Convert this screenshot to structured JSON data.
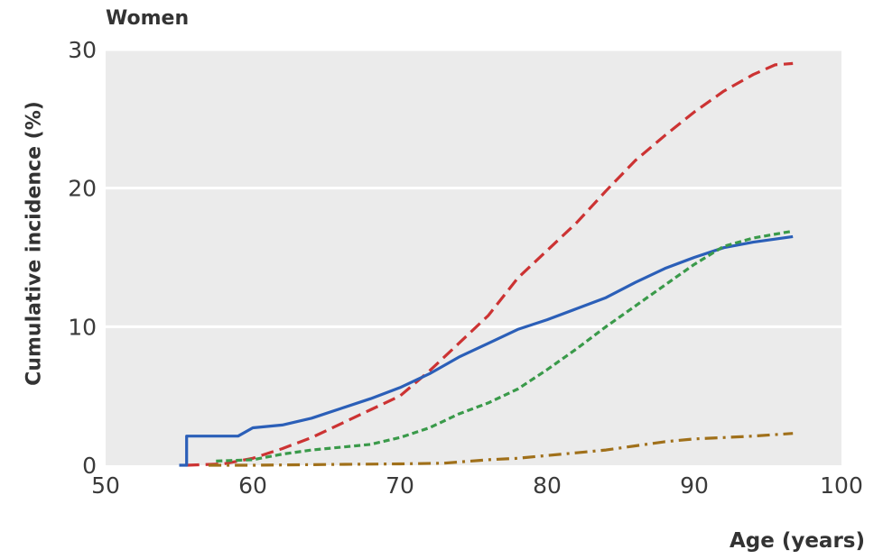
{
  "chart_data": {
    "type": "line",
    "title": "Women",
    "xlabel": "Age (years)",
    "ylabel": "Cumulative incidence (%)",
    "xlim": [
      50,
      100
    ],
    "ylim": [
      0,
      30
    ],
    "x_ticks": [
      "50",
      "60",
      "70",
      "80",
      "90",
      "100"
    ],
    "y_ticks": [
      "0",
      "10",
      "20",
      "30"
    ],
    "grid": "horizontal",
    "background": "#ebebeb",
    "series": [
      {
        "color": "#cc3333",
        "style": "dashed",
        "step": false,
        "points": [
          [
            55.5,
            0
          ],
          [
            58,
            0.1
          ],
          [
            60,
            0.5
          ],
          [
            62,
            1.2
          ],
          [
            64,
            2
          ],
          [
            66,
            3
          ],
          [
            68,
            4
          ],
          [
            70,
            5
          ],
          [
            72,
            6.8
          ],
          [
            74,
            8.8
          ],
          [
            76,
            10.8
          ],
          [
            78,
            13.5
          ],
          [
            80,
            15.5
          ],
          [
            82,
            17.5
          ],
          [
            84,
            19.8
          ],
          [
            86,
            22
          ],
          [
            88,
            23.8
          ],
          [
            90,
            25.5
          ],
          [
            92,
            27
          ],
          [
            94,
            28.2
          ],
          [
            95.5,
            28.9
          ],
          [
            96.7,
            29
          ]
        ]
      },
      {
        "color": "#2b5fb8",
        "style": "solid",
        "step": true,
        "points": [
          [
            55,
            0
          ],
          [
            55.5,
            0
          ],
          [
            55.5,
            2.1
          ],
          [
            59,
            2.1
          ],
          [
            60,
            2.7
          ],
          [
            62,
            2.9
          ],
          [
            64,
            3.4
          ],
          [
            66,
            4.1
          ],
          [
            68,
            4.8
          ],
          [
            70,
            5.6
          ],
          [
            72,
            6.6
          ],
          [
            74,
            7.8
          ],
          [
            76,
            8.8
          ],
          [
            78,
            9.8
          ],
          [
            80,
            10.5
          ],
          [
            82,
            11.3
          ],
          [
            84,
            12.1
          ],
          [
            86,
            13.2
          ],
          [
            88,
            14.2
          ],
          [
            90,
            15
          ],
          [
            92,
            15.7
          ],
          [
            94,
            16.1
          ],
          [
            96.7,
            16.5
          ]
        ]
      },
      {
        "color": "#3a9a4a",
        "style": "dotted",
        "step": false,
        "points": [
          [
            57.5,
            0.3
          ],
          [
            60,
            0.4
          ],
          [
            62,
            0.8
          ],
          [
            64,
            1.1
          ],
          [
            66,
            1.3
          ],
          [
            68,
            1.5
          ],
          [
            70,
            2
          ],
          [
            72,
            2.7
          ],
          [
            74,
            3.7
          ],
          [
            76,
            4.5
          ],
          [
            78,
            5.5
          ],
          [
            80,
            6.9
          ],
          [
            82,
            8.4
          ],
          [
            84,
            10
          ],
          [
            86,
            11.5
          ],
          [
            88,
            13
          ],
          [
            90,
            14.5
          ],
          [
            92,
            15.8
          ],
          [
            94,
            16.4
          ],
          [
            96.7,
            16.9
          ]
        ]
      },
      {
        "color": "#a0701a",
        "style": "dashdot",
        "step": false,
        "points": [
          [
            57,
            0
          ],
          [
            60,
            0
          ],
          [
            65,
            0.05
          ],
          [
            70,
            0.1
          ],
          [
            73,
            0.15
          ],
          [
            76,
            0.4
          ],
          [
            78,
            0.5
          ],
          [
            80,
            0.7
          ],
          [
            82,
            0.9
          ],
          [
            84,
            1.1
          ],
          [
            86,
            1.4
          ],
          [
            88,
            1.7
          ],
          [
            90,
            1.9
          ],
          [
            92,
            2
          ],
          [
            94,
            2.1
          ],
          [
            96.7,
            2.3
          ]
        ]
      }
    ]
  }
}
